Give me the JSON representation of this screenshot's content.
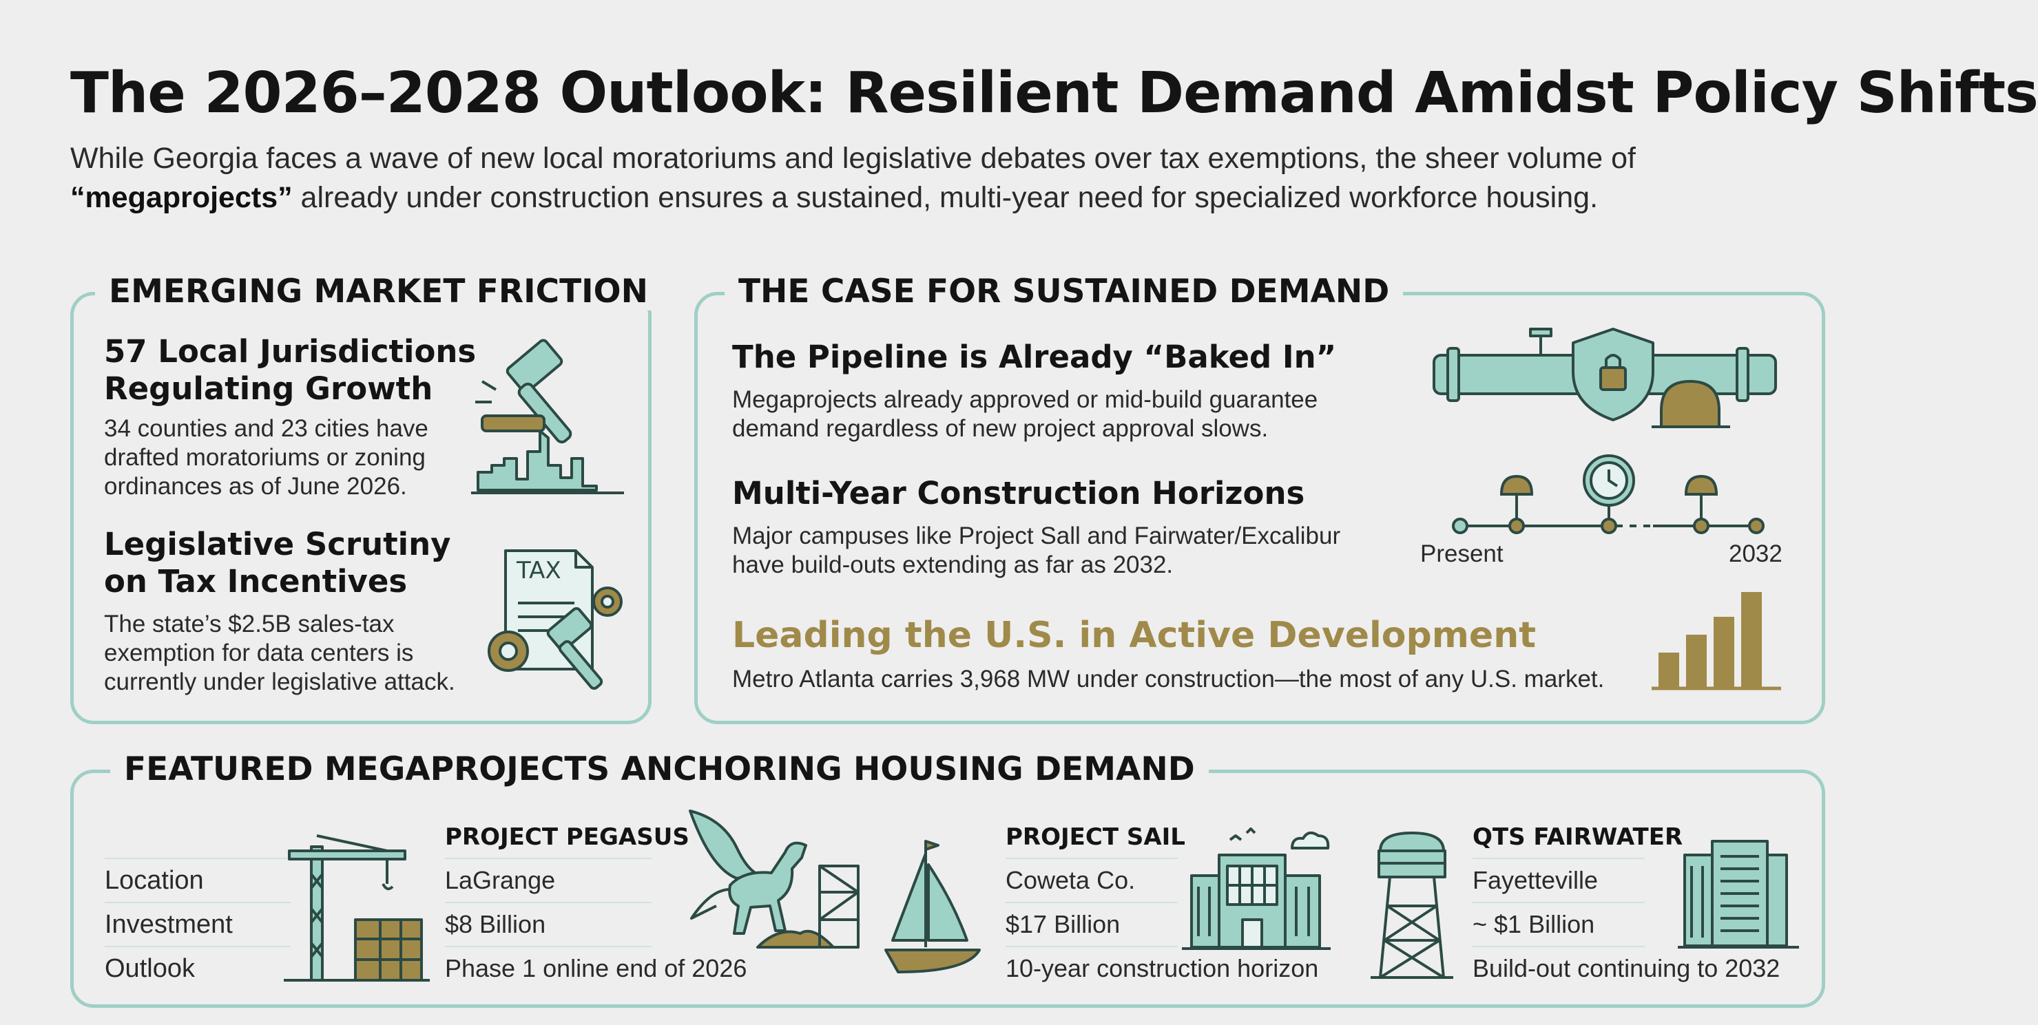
{
  "header": {
    "title": "The 2026–2028 Outlook: Resilient Demand Amidst Policy Shifts",
    "intro_part1": "While Georgia faces a wave of new local moratoriums and legislative debates over tax exemptions, the sheer volume of",
    "intro_bold": "“megaprojects”",
    "intro_part2": " already under construction ensures a sustained, multi-year need for specialized workforce housing."
  },
  "friction": {
    "title": "EMERGING MARKET FRICTION",
    "items": [
      {
        "heading": "57 Local Jurisdictions Regulating Growth",
        "body": "34 counties and 23 cities have drafted moratoriums or zoning ordinances as of June 2026.",
        "icon": "gavel-skyline-icon"
      },
      {
        "heading": "Legislative Scrutiny on Tax Incentives",
        "body": "The state’s $2.5B sales-tax exemption for data centers is currently under legislative attack.",
        "icon_text": "TAX",
        "icon": "tax-document-gavel-icon"
      }
    ]
  },
  "demand": {
    "title": "THE CASE FOR SUSTAINED DEMAND",
    "items": [
      {
        "heading": "The Pipeline is Already “Baked In”",
        "body": "Megaprojects already approved or mid-build guarantee demand regardless of new project approval slows.",
        "icon": "pipeline-shield-hardhat-icon"
      },
      {
        "heading": "Multi-Year Construction Horizons",
        "body": "Major campuses like Project Sall and Fairwater/Excalibur have build-outs extending as far as 2032.",
        "icon": "timeline-icon"
      },
      {
        "heading": "Leading the U.S. in Active Development",
        "body": "Metro Atlanta carries 3,968 MW under construction—the most of any U.S. market.",
        "icon": "bar-chart-icon"
      }
    ],
    "timeline": {
      "start_label": "Present",
      "end_label": "2032"
    }
  },
  "megaprojects": {
    "title": "FEATURED MEGAPROJECTS ANCHORING HOUSING DEMAND",
    "row_labels": [
      "Location",
      "Investment",
      "Outlook"
    ],
    "projects": [
      {
        "name": "PROJECT PEGASUS",
        "location": "LaGrange",
        "investment": "$8 Billion",
        "outlook": "Phase 1 online end of 2026",
        "icon": "pegasus-icon"
      },
      {
        "name": "PROJECT SAIL",
        "location": "Coweta Co.",
        "investment": "$17 Billion",
        "outlook": "10-year construction horizon",
        "icon": "sailboat-building-icon"
      },
      {
        "name": "QTS FAIRWATER",
        "location": "Fayetteville",
        "investment": "~ $1 Billion",
        "outlook": "Build-out continuing to 2032",
        "icon": "water-tower-server-icon"
      }
    ]
  },
  "colors": {
    "teal": "#9fd2c6",
    "teal_dark": "#2c4a44",
    "gold": "#a08a4a",
    "background": "#eeeeee"
  }
}
